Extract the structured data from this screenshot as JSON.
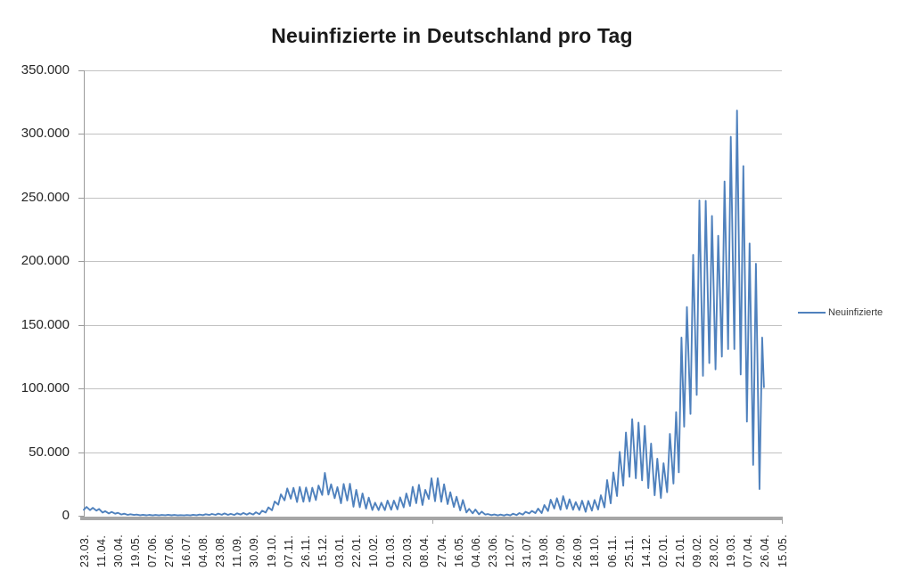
{
  "title": "Neuinfizierte in Deutschland pro Tag",
  "legend": {
    "label": "Neuinfizierte"
  },
  "colors": {
    "series_line": "#4F81BD",
    "gridline": "#c2c2c2",
    "axis_line": "#9b9b9b",
    "axis_thick_bar": "#a6a6a6",
    "title_text": "#1a1a1a",
    "tick_text": "#262626"
  },
  "chart_data": {
    "type": "line",
    "title": "Neuinfizierte in Deutschland pro Tag",
    "xlabel": "",
    "ylabel": "",
    "grid": "horizontal",
    "legend_position": "right",
    "ylim": [
      0,
      350000
    ],
    "y_ticks": [
      {
        "value": 0,
        "label": "0"
      },
      {
        "value": 50000,
        "label": "50.000"
      },
      {
        "value": 100000,
        "label": "100.000"
      },
      {
        "value": 150000,
        "label": "150.000"
      },
      {
        "value": 200000,
        "label": "200.000"
      },
      {
        "value": 250000,
        "label": "250.000"
      },
      {
        "value": 300000,
        "label": "300.000"
      },
      {
        "value": 350000,
        "label": "350.000"
      }
    ],
    "x_tick_labels": [
      "23.03.",
      "11.04.",
      "30.04.",
      "19.05.",
      "07.06.",
      "27.06.",
      "16.07.",
      "04.08.",
      "23.08.",
      "11.09.",
      "30.09.",
      "19.10.",
      "07.11.",
      "26.11.",
      "15.12.",
      "03.01.",
      "22.01.",
      "10.02.",
      "01.03.",
      "20.03.",
      "08.04.",
      "27.04.",
      "16.05.",
      "04.06.",
      "23.06.",
      "12.07.",
      "31.07.",
      "19.08.",
      "07.09.",
      "26.09.",
      "18.10.",
      "06.11.",
      "25.11.",
      "14.12.",
      "02.01.",
      "21.01.",
      "09.02.",
      "28.02.",
      "19.03.",
      "07.04.",
      "26.04.",
      "15.05."
    ],
    "x_start_date": "23.03.2020",
    "x_axis_total_days": 779,
    "series": [
      {
        "name": "Neuinfizierte",
        "points": [
          [
            0,
            4700
          ],
          [
            3,
            6900
          ],
          [
            7,
            4400
          ],
          [
            10,
            6200
          ],
          [
            14,
            4000
          ],
          [
            17,
            5300
          ],
          [
            21,
            2500
          ],
          [
            24,
            3600
          ],
          [
            28,
            1800
          ],
          [
            31,
            3000
          ],
          [
            35,
            1600
          ],
          [
            38,
            2300
          ],
          [
            42,
            1000
          ],
          [
            45,
            1600
          ],
          [
            49,
            700
          ],
          [
            52,
            1200
          ],
          [
            56,
            600
          ],
          [
            59,
            900
          ],
          [
            63,
            400
          ],
          [
            66,
            800
          ],
          [
            70,
            350
          ],
          [
            73,
            700
          ],
          [
            77,
            300
          ],
          [
            80,
            600
          ],
          [
            84,
            250
          ],
          [
            87,
            600
          ],
          [
            91,
            400
          ],
          [
            94,
            800
          ],
          [
            98,
            350
          ],
          [
            101,
            600
          ],
          [
            105,
            300
          ],
          [
            108,
            500
          ],
          [
            112,
            250
          ],
          [
            115,
            550
          ],
          [
            119,
            300
          ],
          [
            122,
            800
          ],
          [
            126,
            400
          ],
          [
            129,
            900
          ],
          [
            133,
            500
          ],
          [
            136,
            1200
          ],
          [
            140,
            600
          ],
          [
            143,
            1400
          ],
          [
            147,
            700
          ],
          [
            150,
            1700
          ],
          [
            154,
            800
          ],
          [
            157,
            1800
          ],
          [
            161,
            700
          ],
          [
            164,
            1500
          ],
          [
            168,
            600
          ],
          [
            171,
            1900
          ],
          [
            175,
            900
          ],
          [
            178,
            2200
          ],
          [
            182,
            900
          ],
          [
            185,
            2100
          ],
          [
            189,
            1000
          ],
          [
            192,
            2700
          ],
          [
            196,
            1200
          ],
          [
            199,
            4000
          ],
          [
            203,
            2500
          ],
          [
            206,
            6600
          ],
          [
            210,
            4300
          ],
          [
            213,
            11200
          ],
          [
            217,
            8700
          ],
          [
            220,
            16800
          ],
          [
            224,
            12100
          ],
          [
            227,
            21500
          ],
          [
            231,
            13400
          ],
          [
            234,
            21900
          ],
          [
            238,
            10800
          ],
          [
            241,
            22600
          ],
          [
            245,
            11000
          ],
          [
            248,
            22200
          ],
          [
            252,
            11200
          ],
          [
            255,
            22000
          ],
          [
            259,
            12300
          ],
          [
            262,
            23700
          ],
          [
            266,
            16300
          ],
          [
            269,
            33700
          ],
          [
            273,
            16600
          ],
          [
            276,
            24700
          ],
          [
            280,
            13800
          ],
          [
            283,
            22500
          ],
          [
            287,
            9800
          ],
          [
            290,
            25000
          ],
          [
            294,
            12000
          ],
          [
            297,
            25100
          ],
          [
            301,
            7100
          ],
          [
            304,
            20400
          ],
          [
            308,
            6700
          ],
          [
            311,
            17600
          ],
          [
            315,
            5600
          ],
          [
            318,
            14200
          ],
          [
            322,
            4500
          ],
          [
            325,
            10200
          ],
          [
            329,
            4400
          ],
          [
            332,
            10200
          ],
          [
            336,
            4400
          ],
          [
            339,
            11900
          ],
          [
            343,
            4700
          ],
          [
            346,
            11900
          ],
          [
            350,
            5000
          ],
          [
            353,
            14400
          ],
          [
            357,
            6600
          ],
          [
            360,
            17500
          ],
          [
            364,
            7700
          ],
          [
            367,
            22700
          ],
          [
            371,
            9900
          ],
          [
            374,
            24300
          ],
          [
            378,
            8500
          ],
          [
            381,
            20400
          ],
          [
            385,
            13200
          ],
          [
            388,
            29400
          ],
          [
            392,
            11400
          ],
          [
            395,
            29500
          ],
          [
            399,
            11000
          ],
          [
            402,
            24700
          ],
          [
            406,
            9200
          ],
          [
            409,
            18500
          ],
          [
            413,
            6900
          ],
          [
            416,
            14900
          ],
          [
            420,
            4200
          ],
          [
            423,
            12300
          ],
          [
            427,
            2600
          ],
          [
            430,
            5400
          ],
          [
            434,
            1900
          ],
          [
            437,
            4900
          ],
          [
            441,
            1100
          ],
          [
            444,
            3200
          ],
          [
            448,
            900
          ],
          [
            451,
            1300
          ],
          [
            455,
            500
          ],
          [
            458,
            1000
          ],
          [
            462,
            250
          ],
          [
            465,
            900
          ],
          [
            469,
            220
          ],
          [
            472,
            1000
          ],
          [
            476,
            300
          ],
          [
            479,
            1600
          ],
          [
            483,
            500
          ],
          [
            486,
            2100
          ],
          [
            490,
            900
          ],
          [
            493,
            3100
          ],
          [
            497,
            1800
          ],
          [
            500,
            3800
          ],
          [
            504,
            2100
          ],
          [
            507,
            5600
          ],
          [
            511,
            2100
          ],
          [
            514,
            8400
          ],
          [
            518,
            3700
          ],
          [
            521,
            12600
          ],
          [
            525,
            5700
          ],
          [
            528,
            13700
          ],
          [
            532,
            4700
          ],
          [
            535,
            15400
          ],
          [
            539,
            5500
          ],
          [
            542,
            12900
          ],
          [
            546,
            4700
          ],
          [
            549,
            10700
          ],
          [
            553,
            4500
          ],
          [
            556,
            11800
          ],
          [
            560,
            3100
          ],
          [
            563,
            11600
          ],
          [
            567,
            4000
          ],
          [
            570,
            12400
          ],
          [
            574,
            4900
          ],
          [
            577,
            16100
          ],
          [
            581,
            6600
          ],
          [
            584,
            28000
          ],
          [
            588,
            9700
          ],
          [
            591,
            34000
          ],
          [
            595,
            15500
          ],
          [
            598,
            50200
          ],
          [
            602,
            23600
          ],
          [
            605,
            65400
          ],
          [
            609,
            30600
          ],
          [
            612,
            75900
          ],
          [
            616,
            29400
          ],
          [
            619,
            73200
          ],
          [
            623,
            27800
          ],
          [
            626,
            70600
          ],
          [
            630,
            21700
          ],
          [
            633,
            56700
          ],
          [
            637,
            16100
          ],
          [
            640,
            44900
          ],
          [
            644,
            13900
          ],
          [
            647,
            41200
          ],
          [
            651,
            18500
          ],
          [
            654,
            64300
          ],
          [
            658,
            25300
          ],
          [
            661,
            81400
          ],
          [
            664,
            34100
          ],
          [
            667,
            140000
          ],
          [
            670,
            70000
          ],
          [
            673,
            164000
          ],
          [
            677,
            80000
          ],
          [
            680,
            205000
          ],
          [
            684,
            95000
          ],
          [
            687,
            247900
          ],
          [
            691,
            110000
          ],
          [
            694,
            247500
          ],
          [
            698,
            120000
          ],
          [
            701,
            235600
          ],
          [
            705,
            115000
          ],
          [
            708,
            220000
          ],
          [
            712,
            125000
          ],
          [
            715,
            262700
          ],
          [
            719,
            131000
          ],
          [
            722,
            297800
          ],
          [
            726,
            131000
          ],
          [
            729,
            318400
          ],
          [
            733,
            111000
          ],
          [
            736,
            274800
          ],
          [
            740,
            74000
          ],
          [
            743,
            214000
          ],
          [
            747,
            40000
          ],
          [
            750,
            198000
          ],
          [
            754,
            21000
          ],
          [
            757,
            140000
          ],
          [
            759,
            101000
          ]
        ]
      }
    ]
  }
}
